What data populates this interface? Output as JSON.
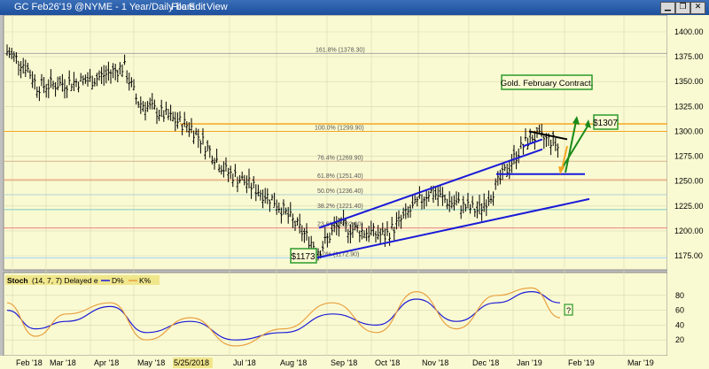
{
  "window": {
    "title": "GC Feb26'19 @NYME - 1 Year/Daily bars",
    "menu": [
      "File",
      "Edit",
      "View"
    ],
    "controls": [
      "minimize-icon",
      "restore-icon",
      "close-icon"
    ]
  },
  "price_axis": {
    "ticks": [
      "1400.00",
      "1375.00",
      "1350.00",
      "1325.00",
      "1300.00",
      "1275.00",
      "1250.00",
      "1225.00",
      "1200.00",
      "1175.00"
    ]
  },
  "fib_levels": [
    {
      "label": "161.8% (1378.30)",
      "price": 1378.3,
      "color": "#a8a8a8"
    },
    {
      "label": "100.0% (1299.90)",
      "price": 1299.9,
      "color": "#f5a623"
    },
    {
      "label": "76.4% (1269.90)",
      "price": 1269.9,
      "color": "#d2b48c"
    },
    {
      "label": "61.8% (1251.40)",
      "price": 1251.4,
      "color": "#e89060"
    },
    {
      "label": "50.0% (1236.40)",
      "price": 1236.4,
      "color": "#b0d0d0"
    },
    {
      "label": "38.2% (1221.40)",
      "price": 1221.4,
      "color": "#80c8c0"
    },
    {
      "label": "23.6% (1202.90)",
      "price": 1202.9,
      "color": "#e88080"
    },
    {
      "label": "0.0% (1172.90)",
      "price": 1172.9,
      "color": "#a0d0ff"
    }
  ],
  "annotations": {
    "contract_label": "Gold. February Contract.",
    "low_label": "$1173",
    "target_label": "$1307",
    "question_label": "?"
  },
  "stoch": {
    "header": "Stoch",
    "params": "(14, 7, 7) Delayed e",
    "legend_d": "D%",
    "legend_k": "K%",
    "ticks": [
      "80",
      "60",
      "40",
      "20"
    ]
  },
  "time_axis": {
    "labels": [
      "Feb '18",
      "Mar '18",
      "Apr '18",
      "May '18",
      "5/25/2018",
      "Jul '18",
      "Aug '18",
      "Sep '18",
      "Oct '18",
      "Nov '18",
      "Dec '18",
      "Jan '19",
      "Feb '19",
      "Mar '19"
    ]
  },
  "chart_data": {
    "type": "ohlc",
    "title": "GC Feb26'19 @NYME - 1 Year/Daily bars",
    "ylim": [
      1160,
      1420
    ],
    "x_labels": [
      "Feb '18",
      "Mar '18",
      "Apr '18",
      "May '18",
      "Jul '18",
      "Aug '18",
      "Sep '18",
      "Oct '18",
      "Nov '18",
      "Dec '18",
      "Jan '19",
      "Feb '19",
      "Mar '19"
    ],
    "price_path": [
      {
        "x": "Feb '18",
        "price": 1380
      },
      {
        "x": "mid Feb '18",
        "price": 1365
      },
      {
        "x": "Mar '18",
        "price": 1345
      },
      {
        "x": "Apr '18",
        "price": 1352
      },
      {
        "x": "late Apr '18",
        "price": 1365
      },
      {
        "x": "May '18",
        "price": 1330
      },
      {
        "x": "late May '18",
        "price": 1310
      },
      {
        "x": "Jun '18",
        "price": 1305
      },
      {
        "x": "late Jun '18",
        "price": 1260
      },
      {
        "x": "Jul '18",
        "price": 1250
      },
      {
        "x": "Aug '18",
        "price": 1230
      },
      {
        "x": "mid Aug '18",
        "price": 1180
      },
      {
        "x": "Sep '18",
        "price": 1205
      },
      {
        "x": "Oct '18",
        "price": 1195
      },
      {
        "x": "late Oct '18",
        "price": 1240
      },
      {
        "x": "Nov '18",
        "price": 1230
      },
      {
        "x": "late Nov '18",
        "price": 1220
      },
      {
        "x": "Dec '18",
        "price": 1245
      },
      {
        "x": "late Dec '18",
        "price": 1280
      },
      {
        "x": "Jan '19",
        "price": 1295
      },
      {
        "x": "late Jan '19",
        "price": 1290
      },
      {
        "x": "end Jan '19",
        "price": 1280
      }
    ],
    "stoch_d": [
      {
        "x": "Feb '18",
        "value": 60
      },
      {
        "x": "mid Feb '18",
        "value": 35
      },
      {
        "x": "Mar '18",
        "value": 45
      },
      {
        "x": "Apr '18",
        "value": 65
      },
      {
        "x": "May '18",
        "value": 30
      },
      {
        "x": "Jun '18",
        "value": 45
      },
      {
        "x": "Jul '18",
        "value": 20
      },
      {
        "x": "Aug '18",
        "value": 30
      },
      {
        "x": "Sep '18",
        "value": 55
      },
      {
        "x": "Oct '18",
        "value": 40
      },
      {
        "x": "late Oct '18",
        "value": 75
      },
      {
        "x": "Nov '18",
        "value": 45
      },
      {
        "x": "Dec '18",
        "value": 70
      },
      {
        "x": "Jan '19",
        "value": 85
      },
      {
        "x": "end Jan '19",
        "value": 70
      }
    ],
    "stoch_k": [
      {
        "x": "Feb '18",
        "value": 70
      },
      {
        "x": "mid Feb '18",
        "value": 25
      },
      {
        "x": "Mar '18",
        "value": 55
      },
      {
        "x": "Apr '18",
        "value": 70
      },
      {
        "x": "May '18",
        "value": 20
      },
      {
        "x": "Jun '18",
        "value": 50
      },
      {
        "x": "Jul '18",
        "value": 12
      },
      {
        "x": "Aug '18",
        "value": 35
      },
      {
        "x": "Sep '18",
        "value": 70
      },
      {
        "x": "Oct '18",
        "value": 30
      },
      {
        "x": "late Oct '18",
        "value": 85
      },
      {
        "x": "Nov '18",
        "value": 35
      },
      {
        "x": "Dec '18",
        "value": 80
      },
      {
        "x": "Jan '19",
        "value": 90
      },
      {
        "x": "end Jan '19",
        "value": 50
      }
    ],
    "stoch_ylim": [
      0,
      100
    ],
    "trendlines": [
      {
        "name": "upper channel",
        "color": "#1a1ad8",
        "from": {
          "x": "mid Aug '18",
          "price": 1203
        },
        "to": {
          "x": "Jan '19",
          "price": 1282
        }
      },
      {
        "name": "lower channel",
        "color": "#1a1ad8",
        "from": {
          "x": "mid Aug '18",
          "price": 1173
        },
        "to": {
          "x": "early Feb '19",
          "price": 1232
        }
      },
      {
        "name": "support",
        "color": "#1a1ad8",
        "from": {
          "x": "late Dec '18",
          "price": 1257
        },
        "to": {
          "x": "early Feb '19",
          "price": 1257
        }
      }
    ],
    "levels": {
      "low": 1173,
      "target": 1307
    }
  }
}
